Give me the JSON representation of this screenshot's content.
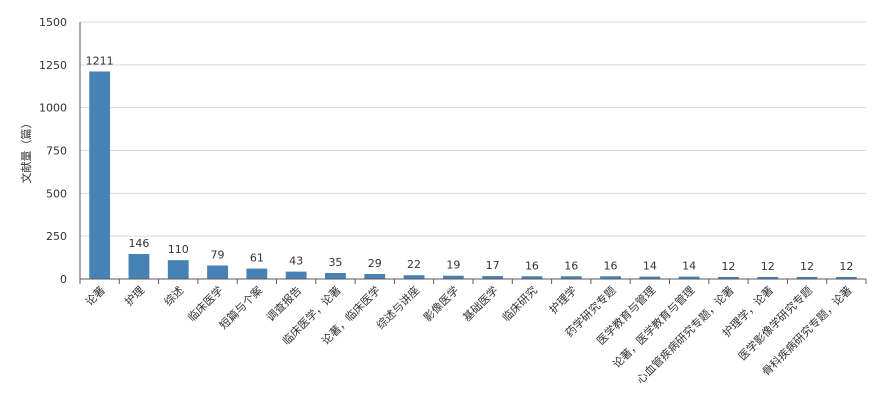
{
  "chart_data": {
    "type": "bar",
    "title": "",
    "xlabel": "",
    "ylabel": "文献量（篇）",
    "ylim": [
      0,
      1500
    ],
    "yticks": [
      0,
      250,
      500,
      750,
      1000,
      1250,
      1500
    ],
    "grid": true,
    "legend": "none",
    "categories": [
      "论著",
      "护理",
      "综述",
      "临床医学",
      "短篇与个案",
      "调查报告",
      "临床医学，论著",
      "论著，临床医学",
      "综述与讲座",
      "影像医学",
      "基础医学",
      "临床研究",
      "护理学",
      "药学研究专题",
      "医学教育与管理",
      "论著，医学教育与管理",
      "心血管疾病研究专题，论著",
      "护理学，论著",
      "医学影像学研究专题",
      "骨科疾病研究专题，论著"
    ],
    "values": [
      1211,
      146,
      110,
      79,
      61,
      43,
      35,
      29,
      22,
      19,
      17,
      16,
      16,
      16,
      14,
      14,
      12,
      12,
      12,
      12
    ],
    "colors": {
      "bar": "#4682b4",
      "grid": "#d9d9d9",
      "axis": "#5a5a5a",
      "label": "#333333"
    }
  }
}
